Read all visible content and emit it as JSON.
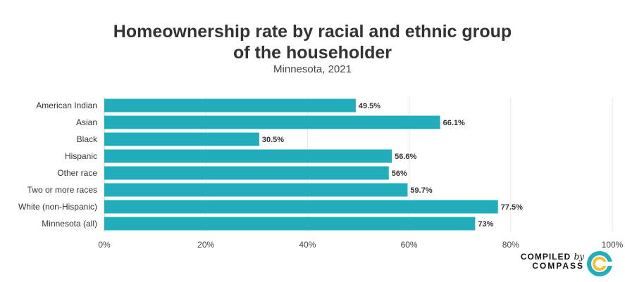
{
  "title_line1": "Homeownership rate by racial and ethnic group",
  "title_line2": "of the householder",
  "subtitle": "Minnesota, 2021",
  "logo": {
    "line1_a": "COMPILED",
    "line1_b": "by",
    "line2": "COMPASS"
  },
  "colors": {
    "bar": "#21adbb",
    "grid": "#e6e6e6",
    "axis": "#cccccc"
  },
  "chart_data": {
    "type": "bar",
    "orientation": "horizontal",
    "title": "Homeownership rate by racial and ethnic group of the householder",
    "subtitle": "Minnesota, 2021",
    "categories": [
      "American Indian",
      "Asian",
      "Black",
      "Hispanic",
      "Other race",
      "Two or more races",
      "White (non-Hispanic)",
      "Minnesota (all)"
    ],
    "values": [
      49.5,
      66.1,
      30.5,
      56.6,
      56,
      59.7,
      77.5,
      73
    ],
    "value_labels": [
      "49.5%",
      "66.1%",
      "30.5%",
      "56.6%",
      "56%",
      "59.7%",
      "77.5%",
      "73%"
    ],
    "xlim": [
      0,
      100
    ],
    "xticks": [
      0,
      20,
      40,
      60,
      80,
      100
    ],
    "xtick_labels": [
      "0%",
      "20%",
      "40%",
      "60%",
      "80%",
      "100%"
    ],
    "grid": true
  }
}
